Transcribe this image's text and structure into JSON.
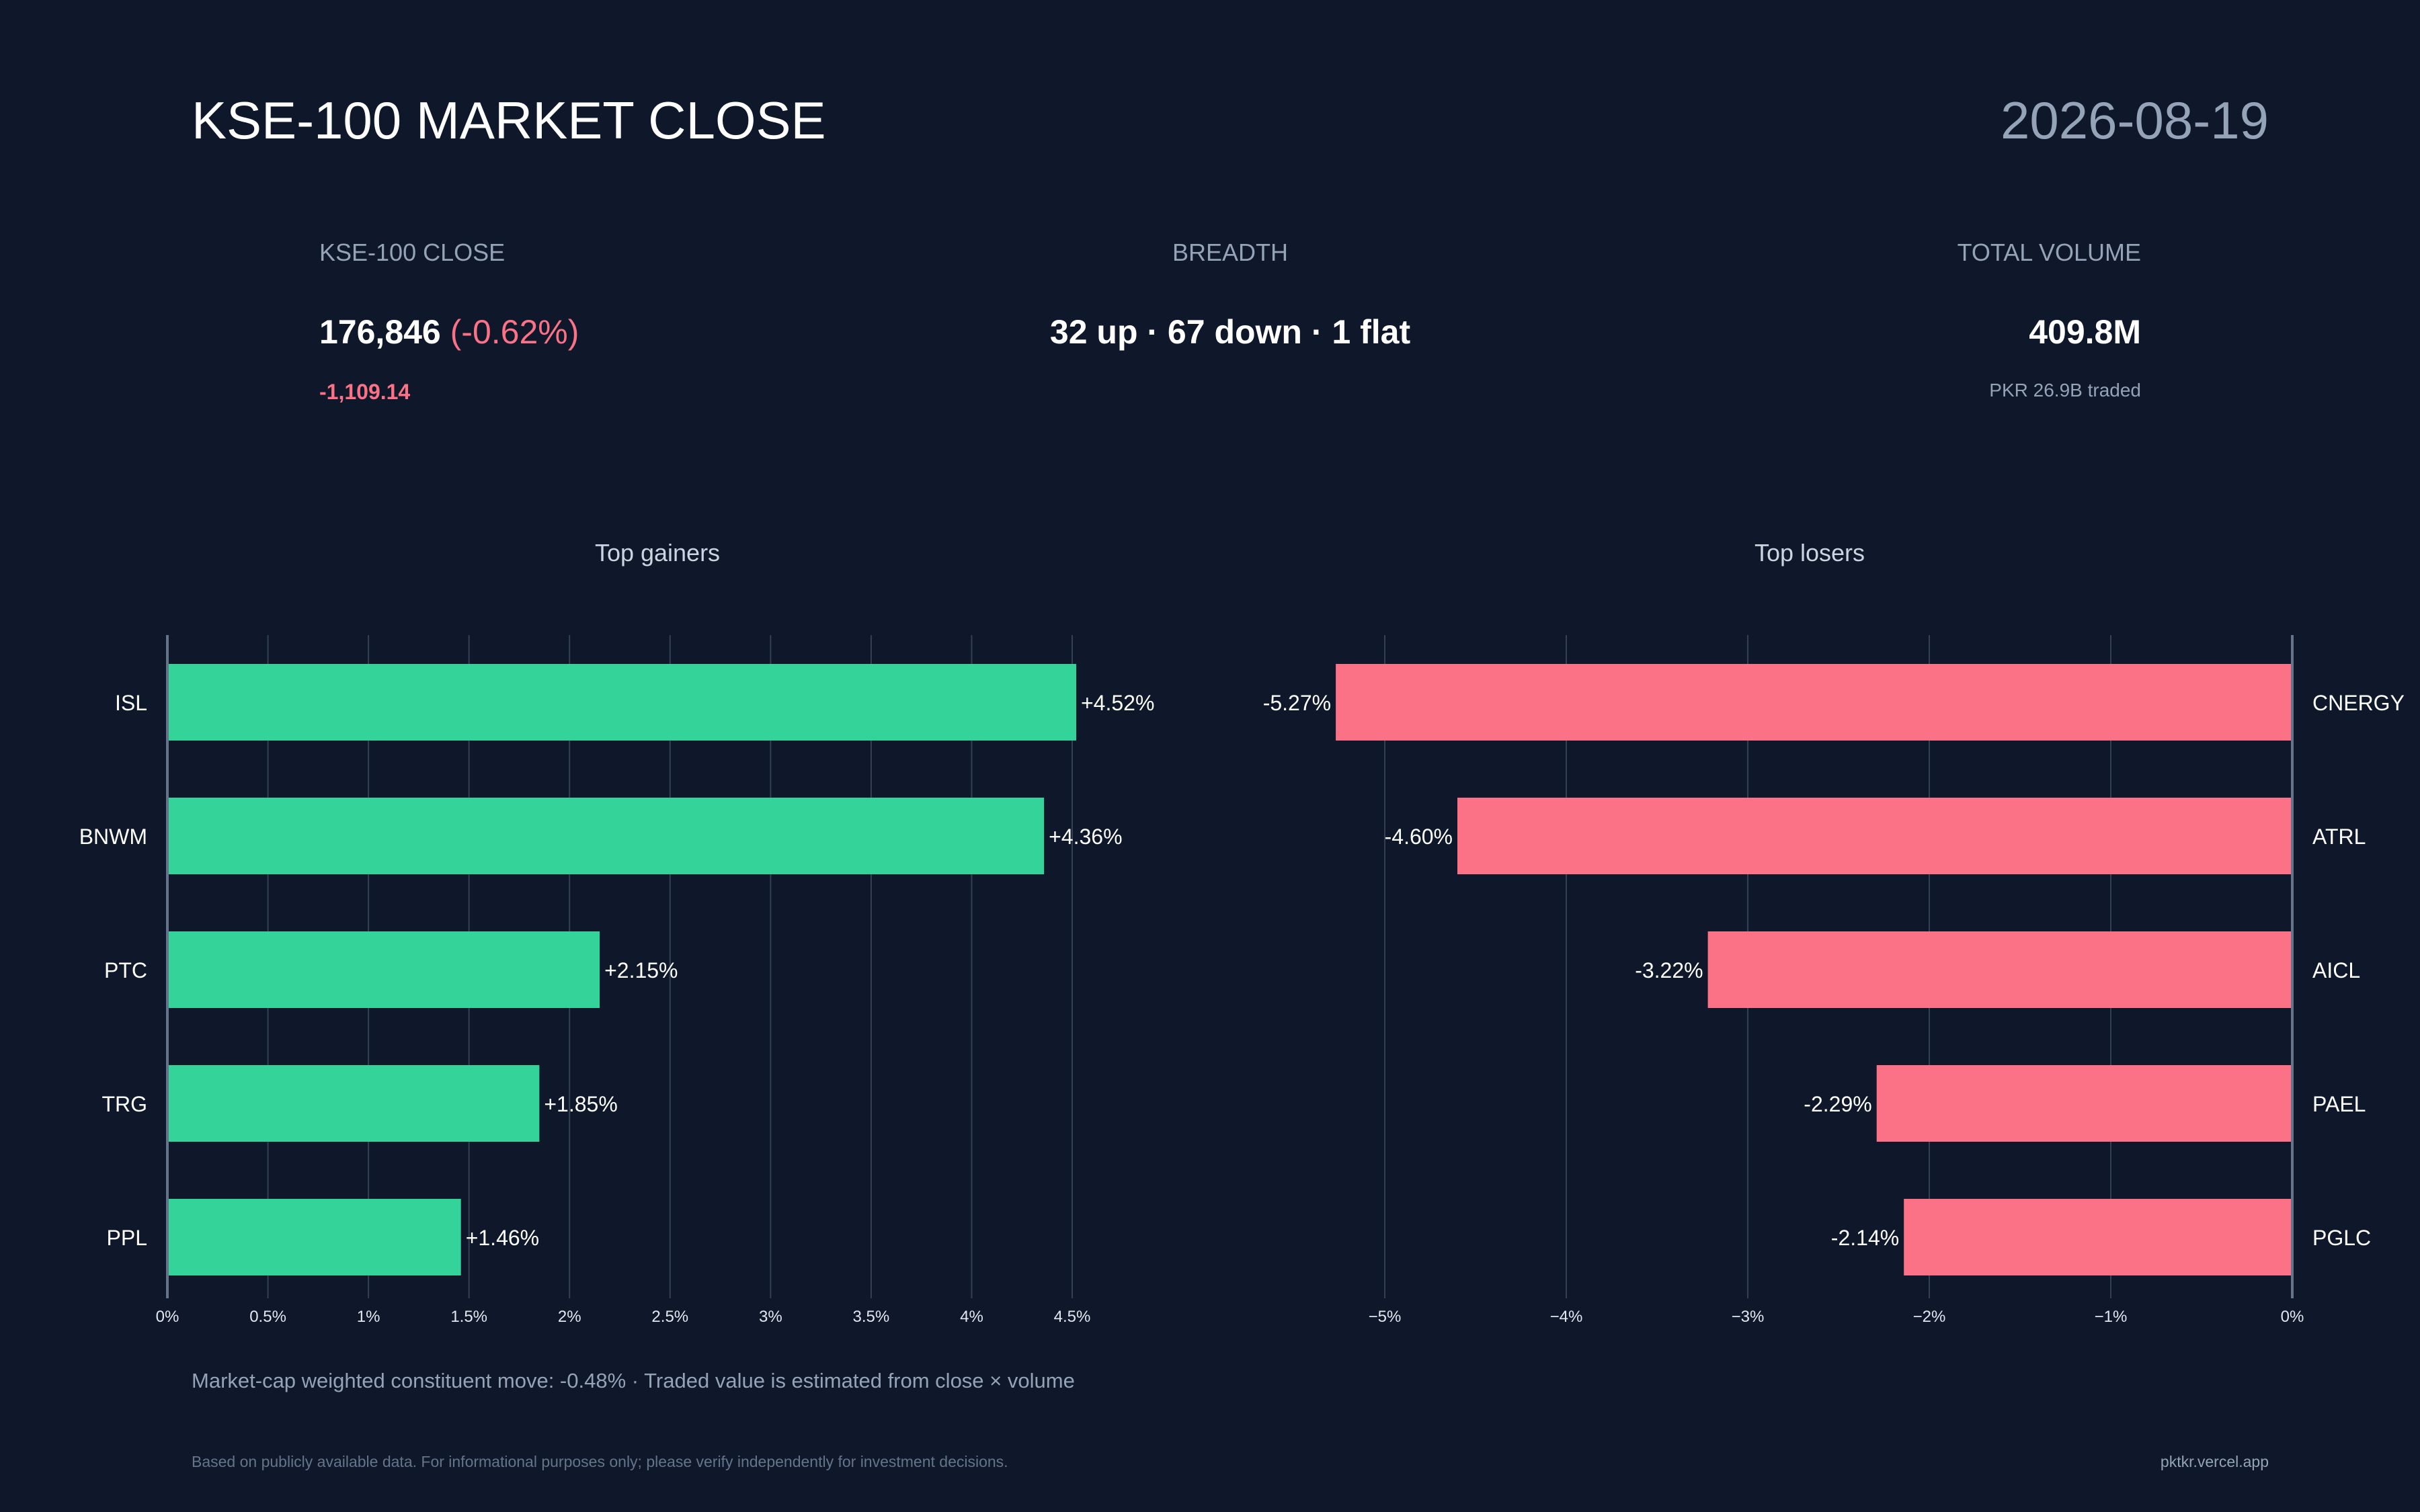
{
  "header": {
    "title": "KSE-100 MARKET CLOSE",
    "date": "2026-08-19"
  },
  "stats": {
    "close": {
      "label": "KSE-100 CLOSE",
      "value": "176,846",
      "pct": "(-0.62%)",
      "change": "-1,109.14"
    },
    "breadth": {
      "label": "BREADTH",
      "value": "32 up · 67 down · 1 flat"
    },
    "volume": {
      "label": "TOTAL VOLUME",
      "value": "409.8M",
      "sub": "PKR 26.9B traded"
    }
  },
  "colors": {
    "gain": "#34d399",
    "loss": "#fb7185",
    "background": "#0f172a",
    "grid": "#334155",
    "axis": "#64748b"
  },
  "chart_data": [
    {
      "type": "bar",
      "orientation": "horizontal",
      "title": "Top gainers",
      "categories": [
        "ISL",
        "BNWM",
        "PTC",
        "TRG",
        "PPL"
      ],
      "values": [
        4.52,
        4.36,
        2.15,
        1.85,
        1.46
      ],
      "value_labels": [
        "+4.52%",
        "+4.36%",
        "+2.15%",
        "+1.85%",
        "+1.46%"
      ],
      "xlim": [
        0,
        4.5
      ],
      "ticks": [
        0,
        0.5,
        1,
        1.5,
        2,
        2.5,
        3,
        3.5,
        4,
        4.5
      ],
      "tick_labels": [
        "0%",
        "0.5%",
        "1%",
        "1.5%",
        "2%",
        "2.5%",
        "3%",
        "3.5%",
        "4%",
        "4.5%"
      ],
      "grid": true
    },
    {
      "type": "bar",
      "orientation": "horizontal",
      "title": "Top losers",
      "categories": [
        "CNERGY",
        "ATRL",
        "AICL",
        "PAEL",
        "PGLC"
      ],
      "values": [
        -5.27,
        -4.6,
        -3.22,
        -2.29,
        -2.14
      ],
      "value_labels": [
        "-5.27%",
        "-4.60%",
        "-3.22%",
        "-2.29%",
        "-2.14%"
      ],
      "xlim": [
        -5,
        0
      ],
      "ticks": [
        -5,
        -4,
        -3,
        -2,
        -1,
        0
      ],
      "tick_labels": [
        "−5%",
        "−4%",
        "−3%",
        "−2%",
        "−1%",
        "0%"
      ],
      "grid": true
    }
  ],
  "footer": {
    "note": "Market-cap weighted constituent move: -0.48% · Traded value is estimated from close × volume",
    "disclaimer": "Based on publicly available data. For informational purposes only; please verify independently for investment decisions.",
    "site": "pktkr.vercel.app"
  }
}
